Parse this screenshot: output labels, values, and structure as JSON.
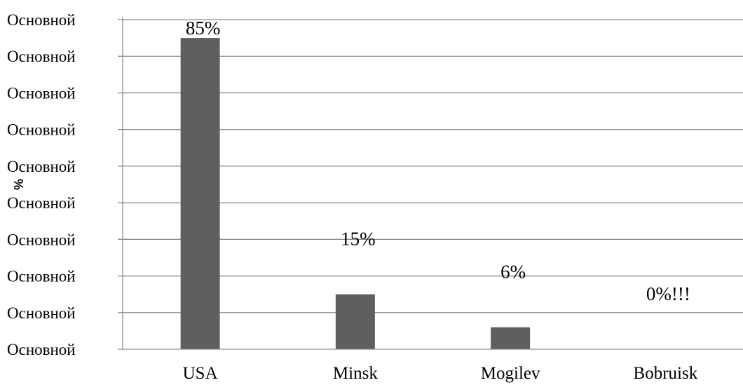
{
  "chart_data": {
    "type": "bar",
    "title": "",
    "xlabel": "",
    "ylabel": "%",
    "categories": [
      "USA",
      "Minsk",
      "Mogilev",
      "Bobruisk"
    ],
    "values": [
      85,
      15,
      6,
      0
    ],
    "data_labels": [
      "85%",
      "15%",
      "6%",
      "0%!!!"
    ],
    "ylim": [
      0,
      90
    ],
    "y_tick_values": [
      0,
      10,
      20,
      30,
      40,
      50,
      60,
      70,
      80,
      90
    ],
    "y_tick_labels": [
      "Основной",
      "Основной",
      "Основной",
      "Основной",
      "Основной",
      "Основной",
      "Основной",
      "Основной",
      "Основной",
      "Основной"
    ],
    "bar_color": "#5f5f5f",
    "grid": true,
    "legend": "none"
  }
}
